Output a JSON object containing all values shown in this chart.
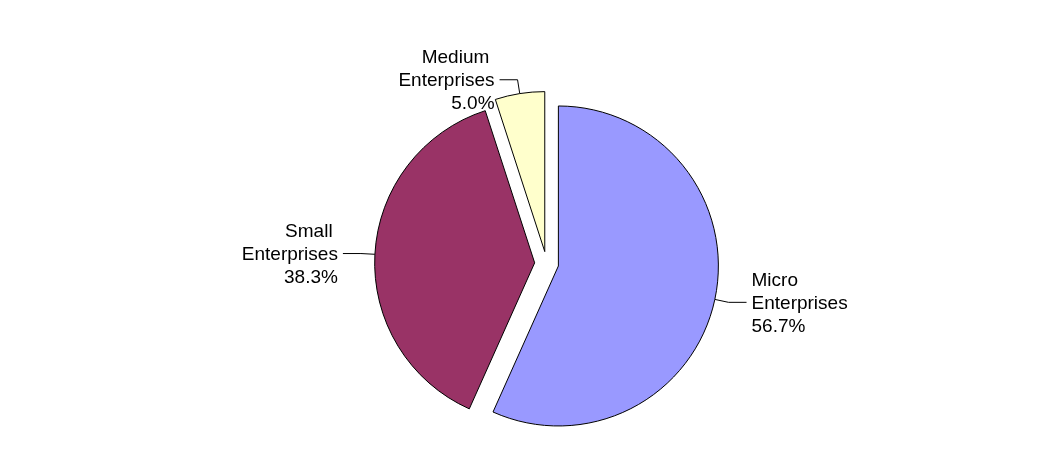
{
  "chart_data": {
    "type": "pie",
    "categories": [
      "Micro Enterprises",
      "Small Enterprises",
      "Medium Enterprises"
    ],
    "values": [
      56.7,
      38.3,
      5.0
    ],
    "value_labels": [
      "56.7%",
      "38.3%",
      "5.0%"
    ],
    "colors": [
      "#9999ff",
      "#993366",
      "#ffffcc"
    ],
    "legend": false
  }
}
